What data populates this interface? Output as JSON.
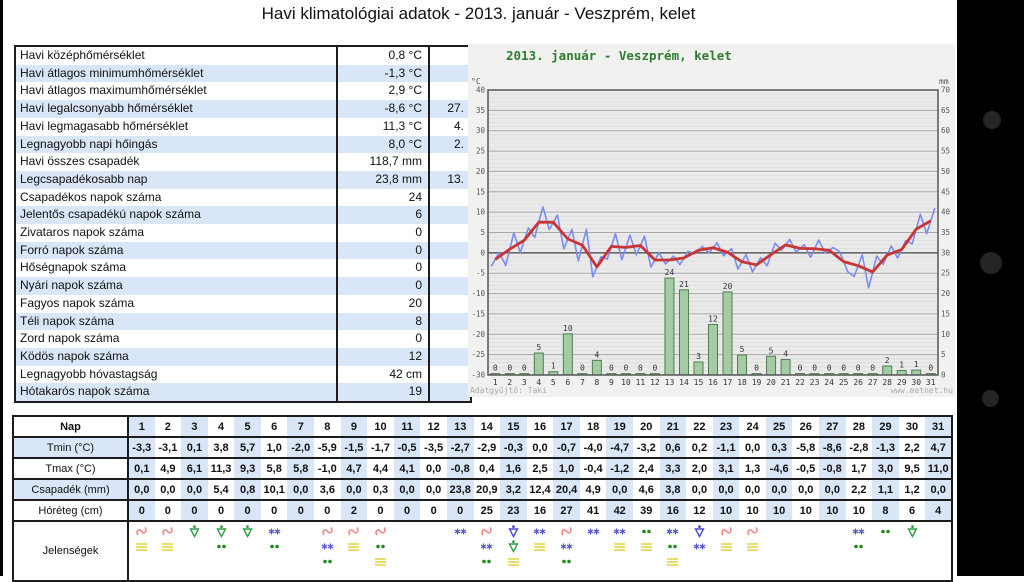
{
  "page": {
    "title": "Havi klimatológiai adatok - 2013. január - Veszprém, kelet"
  },
  "stats": {
    "rows": [
      {
        "label": "Havi középhőmérséklet",
        "value": "0,8 °C",
        "date": ""
      },
      {
        "label": "Havi átlagos minimumhőmérséklet",
        "value": "-1,3 °C",
        "date": ""
      },
      {
        "label": "Havi átlagos maximumhőmérséklet",
        "value": "2,9 °C",
        "date": ""
      },
      {
        "label": "Havi legalcsonyabb hőmérséklet",
        "value": "-8,6 °C",
        "date": "27."
      },
      {
        "label": "Havi legmagasabb hőmérséklet",
        "value": "11,3 °C",
        "date": "4."
      },
      {
        "label": "Legnagyobb napi hőingás",
        "value": "8,0 °C",
        "date": "2."
      },
      {
        "label": "Havi összes csapadék",
        "value": "118,7 mm",
        "date": ""
      },
      {
        "label": "Legcsapadékosabb nap",
        "value": "23,8 mm",
        "date": "13."
      },
      {
        "label": "Csapadékos napok száma",
        "value": "24",
        "date": ""
      },
      {
        "label": "Jelentős csapadékú napok száma",
        "value": "6",
        "date": ""
      },
      {
        "label": "Zivataros napok száma",
        "value": "0",
        "date": ""
      },
      {
        "label": "Forró napok száma",
        "value": "0",
        "date": ""
      },
      {
        "label": "Hőségnapok száma",
        "value": "0",
        "date": ""
      },
      {
        "label": "Nyári napok száma",
        "value": "0",
        "date": ""
      },
      {
        "label": "Fagyos napok száma",
        "value": "20",
        "date": ""
      },
      {
        "label": "Téli napok száma",
        "value": "8",
        "date": ""
      },
      {
        "label": "Zord napok száma",
        "value": "0",
        "date": ""
      },
      {
        "label": "Ködös napok száma",
        "value": "12",
        "date": ""
      },
      {
        "label": "Legnagyobb hóvastagság",
        "value": "42 cm",
        "date": ""
      },
      {
        "label": "Hótakarós napok száma",
        "value": "19",
        "date": ""
      }
    ]
  },
  "chart_data": {
    "type": "line+bar combo",
    "title": "2013. január - Veszprém, kelet",
    "title_color": "#2e7d2e",
    "x": [
      1,
      2,
      3,
      4,
      5,
      6,
      7,
      8,
      9,
      10,
      11,
      12,
      13,
      14,
      15,
      16,
      17,
      18,
      19,
      20,
      21,
      22,
      23,
      24,
      25,
      26,
      27,
      28,
      29,
      30,
      31
    ],
    "left_axis": {
      "unit": "°C",
      "min": -30,
      "max": 40,
      "step": 5
    },
    "right_axis": {
      "unit": "mm",
      "min": 0,
      "max": 70,
      "step": 5
    },
    "grid": true,
    "legend": "none",
    "series": [
      {
        "name": "Tmin",
        "type": "line",
        "color": "#7b8cee",
        "values": [
          -3.3,
          -3.1,
          0.1,
          3.8,
          5.7,
          1.0,
          -2.0,
          -5.9,
          -1.5,
          -1.7,
          -0.5,
          -3.5,
          -2.7,
          -2.9,
          -0.3,
          0.0,
          -0.7,
          -4.0,
          -4.7,
          -3.2,
          0.6,
          0.2,
          -1.1,
          0.0,
          0.3,
          -5.8,
          -8.6,
          -2.8,
          -1.3,
          2.2,
          4.7
        ]
      },
      {
        "name": "Tmax",
        "type": "line",
        "color": "#7b8cee",
        "values": [
          0.1,
          4.9,
          6.1,
          11.3,
          9.3,
          5.8,
          5.8,
          -1.0,
          4.7,
          4.4,
          4.1,
          0.0,
          -0.8,
          0.4,
          1.6,
          2.5,
          1.0,
          -0.4,
          -1.2,
          2.4,
          3.3,
          2.0,
          3.1,
          1.3,
          -4.6,
          -0.5,
          -0.8,
          1.7,
          3.0,
          9.5,
          11.0
        ]
      },
      {
        "name": "daily mean temperature",
        "type": "line",
        "color": "#c93434",
        "derived": "mean of Tmin and Tmax"
      },
      {
        "name": "precipitation",
        "type": "bar",
        "color": "#a5cba5",
        "border": "#4e7e4e",
        "values": [
          0.0,
          0.0,
          0.0,
          5.4,
          0.8,
          10.1,
          0.0,
          3.6,
          0.0,
          0.3,
          0.0,
          0.0,
          23.8,
          20.9,
          3.2,
          12.4,
          20.4,
          4.9,
          0.0,
          4.6,
          3.8,
          0.0,
          0.0,
          0.0,
          0.0,
          0.0,
          0.0,
          2.2,
          1.1,
          1.2,
          0.0
        ],
        "labels": [
          "0",
          "0",
          "0",
          "5",
          "1",
          "10",
          "0",
          "4",
          "0",
          "0",
          "0",
          "0",
          "24",
          "21",
          "3",
          "12",
          "20",
          "5",
          "0",
          "5",
          "4",
          "0",
          "0",
          "0",
          "0",
          "0",
          "0",
          "2",
          "1",
          "1",
          "0"
        ]
      }
    ],
    "source_left": "Adatgyűjtő: Taki",
    "source_right": "www.metnet.hu"
  },
  "daily": {
    "col_header": "Nap",
    "days": [
      1,
      2,
      3,
      4,
      5,
      6,
      7,
      8,
      9,
      10,
      11,
      12,
      13,
      14,
      15,
      16,
      17,
      18,
      19,
      20,
      21,
      22,
      23,
      24,
      25,
      26,
      27,
      28,
      29,
      30,
      31
    ],
    "rows": [
      {
        "name": "tmin",
        "label": "Tmin (°C)",
        "values": [
          "-3,3",
          "-3,1",
          "0,1",
          "3,8",
          "5,7",
          "1,0",
          "-2,0",
          "-5,9",
          "-1,5",
          "-1,7",
          "-0,5",
          "-3,5",
          "-2,7",
          "-2,9",
          "-0,3",
          "0,0",
          "-0,7",
          "-4,0",
          "-4,7",
          "-3,2",
          "0,6",
          "0,2",
          "-1,1",
          "0,0",
          "0,3",
          "-5,8",
          "-8,6",
          "-2,8",
          "-1,3",
          "2,2",
          "4,7"
        ]
      },
      {
        "name": "tmax",
        "label": "Tmax (°C)",
        "values": [
          "0,1",
          "4,9",
          "6,1",
          "11,3",
          "9,3",
          "5,8",
          "5,8",
          "-1,0",
          "4,7",
          "4,4",
          "4,1",
          "0,0",
          "-0,8",
          "0,4",
          "1,6",
          "2,5",
          "1,0",
          "-0,4",
          "-1,2",
          "2,4",
          "3,3",
          "2,0",
          "3,1",
          "1,3",
          "-4,6",
          "-0,5",
          "-0,8",
          "1,7",
          "3,0",
          "9,5",
          "11,0"
        ]
      },
      {
        "name": "precip",
        "label": "Csapadék (mm)",
        "values": [
          "0,0",
          "0,0",
          "0,0",
          "5,4",
          "0,8",
          "10,1",
          "0,0",
          "3,6",
          "0,0",
          "0,3",
          "0,0",
          "0,0",
          "23,8",
          "20,9",
          "3,2",
          "12,4",
          "20,4",
          "4,9",
          "0,0",
          "4,6",
          "3,8",
          "0,0",
          "0,0",
          "0,0",
          "0,0",
          "0,0",
          "0,0",
          "2,2",
          "1,1",
          "1,2",
          "0,0"
        ]
      },
      {
        "name": "snow-depth",
        "label": "Hóréteg (cm)",
        "values": [
          "0",
          "0",
          "0",
          "0",
          "0",
          "0",
          "0",
          "0",
          "2",
          "0",
          "0",
          "0",
          "0",
          "25",
          "23",
          "16",
          "27",
          "41",
          "42",
          "39",
          "16",
          "12",
          "10",
          "10",
          "10",
          "10",
          "10",
          "10",
          "8",
          "6",
          "4"
        ]
      }
    ],
    "phenomena_label": "Jelenségek",
    "symbols": {
      "freezing": {
        "shape": "red wavy line",
        "color": "#ee8484"
      },
      "fog": {
        "shape": "yellow horizontal bars",
        "color": "#e8d44b"
      },
      "rain": {
        "shape": "two green dots",
        "color": "#1f8a1f"
      },
      "snow": {
        "shape": "two blue asterisks",
        "color": "#5353d6"
      },
      "rain_shower": {
        "shape": "green triangle with dot",
        "color": "#2f9e47"
      },
      "snow_shower": {
        "shape": "blue triangle with dot",
        "color": "#4848d8"
      }
    },
    "phenomena": [
      [
        "freezing",
        "fog"
      ],
      [
        "freezing",
        "fog"
      ],
      [
        "rain_shower"
      ],
      [
        "rain_shower",
        "rain"
      ],
      [
        "rain_shower"
      ],
      [
        "snow",
        "rain"
      ],
      [],
      [
        "freezing",
        "snow",
        "rain"
      ],
      [
        "freezing",
        "fog"
      ],
      [
        "freezing",
        "rain",
        "fog"
      ],
      [],
      [],
      [
        "snow"
      ],
      [
        "freezing",
        "snow",
        "rain"
      ],
      [
        "snow_shower",
        "rain_shower",
        "fog"
      ],
      [
        "snow",
        "fog"
      ],
      [
        "freezing",
        "snow",
        "rain"
      ],
      [
        "snow"
      ],
      [
        "snow",
        "fog"
      ],
      [
        "rain",
        "fog"
      ],
      [
        "snow",
        "rain",
        "fog"
      ],
      [
        "snow_shower",
        "snow"
      ],
      [
        "freezing",
        "fog"
      ],
      [
        "freezing",
        "fog"
      ],
      [],
      [],
      [],
      [
        "snow",
        "rain"
      ],
      [
        "rain"
      ],
      [
        "rain_shower"
      ],
      []
    ]
  }
}
